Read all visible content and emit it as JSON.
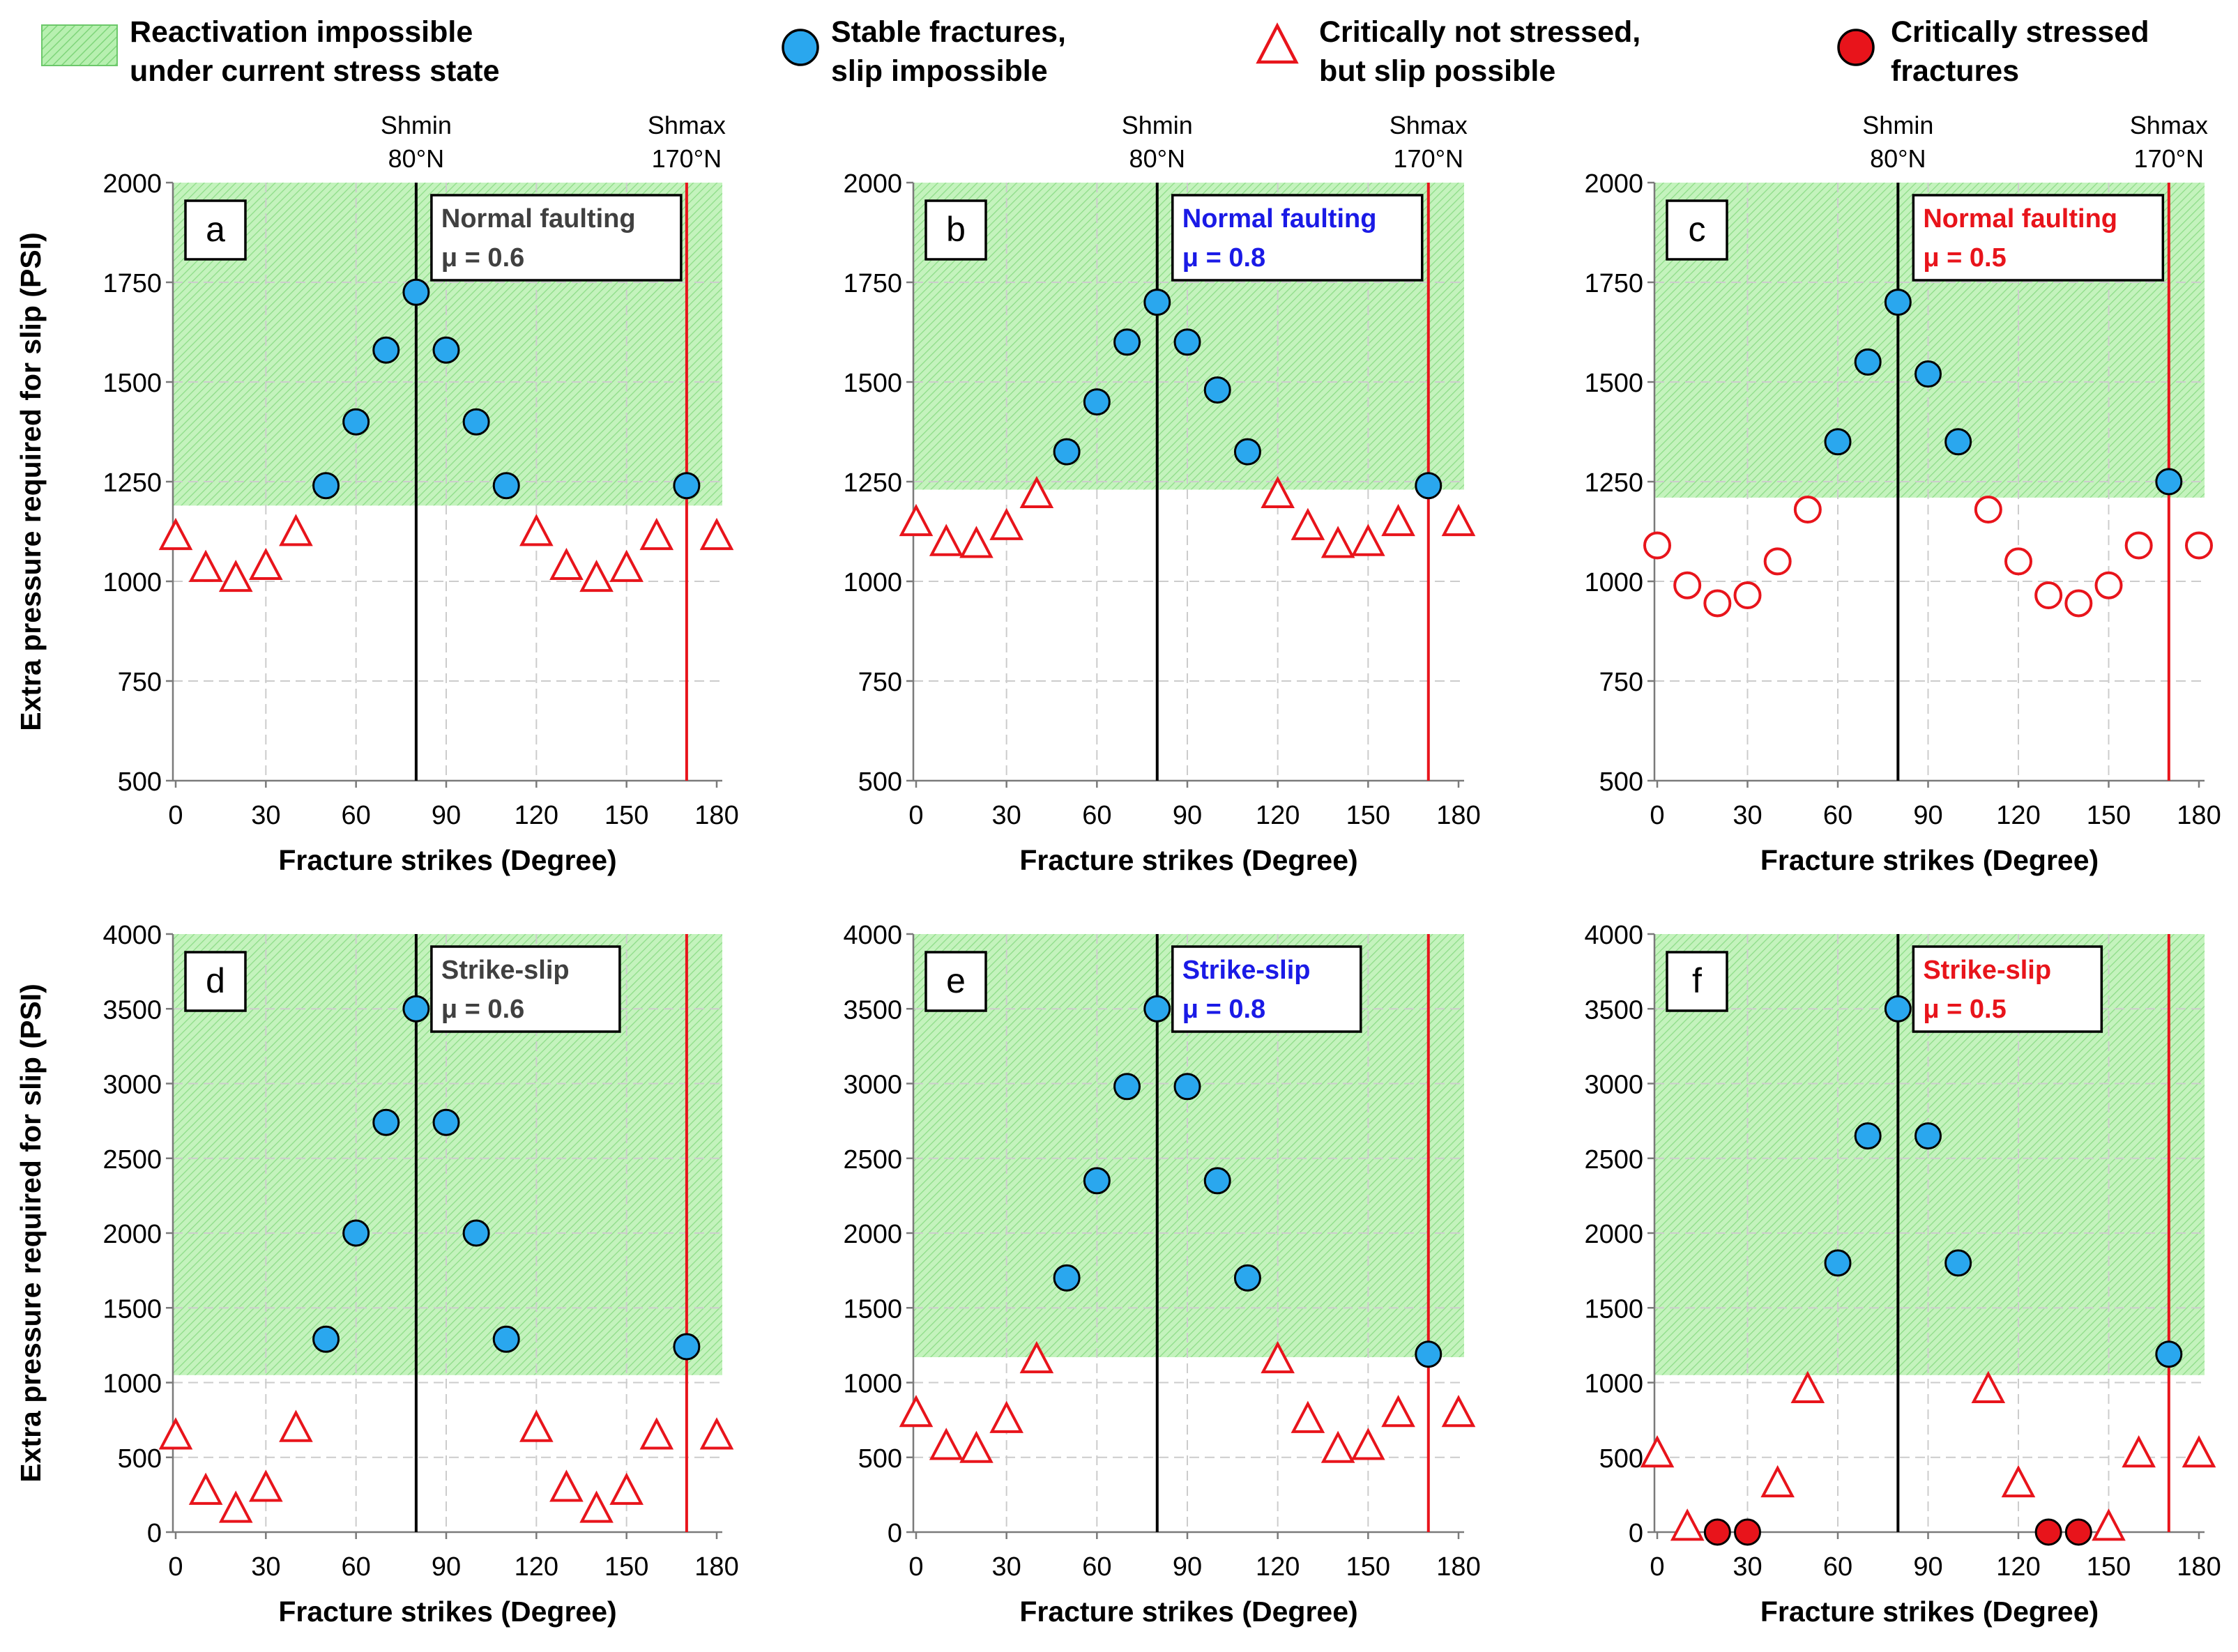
{
  "colors": {
    "zone_fill": "#b7f0b0",
    "zone_hatch": "#7fd57a",
    "stable": "#2aa7ee",
    "critical_not_stressed": "#e8141b",
    "critical_stressed": "#e8141b",
    "shmin_line": "#000000",
    "shmax_line": "#e8141b",
    "grid": "#cccccc",
    "label_gray": "#404040",
    "label_blue": "#1a1ae6",
    "label_red": "#e8141b"
  },
  "legend": [
    {
      "key": "zone",
      "line1": "Reactivation impossible",
      "line2": "under current stress state",
      "symbol": "hatched-box"
    },
    {
      "key": "stable",
      "line1": "Stable fractures,",
      "line2": "slip impossible",
      "symbol": "blue-circle"
    },
    {
      "key": "critical_not_stressed",
      "line1": "Critically  not stressed,",
      "line2": "but slip possible",
      "symbol": "red-triangle"
    },
    {
      "key": "critical_stressed",
      "line1": "Critically  stressed",
      "line2": "fractures",
      "symbol": "red-filled-circle"
    }
  ],
  "common": {
    "xlabel": "Fracture strikes (Degree)",
    "ylabel": "Extra pressure required for slip (PSI)",
    "xticks": [
      0,
      30,
      60,
      90,
      120,
      150,
      180
    ],
    "xlim": [
      0,
      180
    ],
    "shmin": {
      "value": 80,
      "label_top": "Shmin",
      "label_bottom": "80°N"
    },
    "shmax": {
      "value": 170,
      "label_top": "Shmax",
      "label_bottom": "170°N"
    }
  },
  "chart_data": [
    {
      "type": "scatter",
      "panel": "a",
      "regime": "Normal faulting",
      "mu_label": "μ = 0.6",
      "label_color": "label_gray",
      "ylim": [
        500,
        2000
      ],
      "yticks": [
        500,
        750,
        1000,
        1250,
        1500,
        1750,
        2000
      ],
      "zone_min": 1190,
      "stable": {
        "x": [
          50,
          60,
          70,
          80,
          90,
          100,
          110,
          170
        ],
        "y": [
          1240,
          1400,
          1580,
          1725,
          1580,
          1400,
          1240,
          1240
        ]
      },
      "critical_not_stressed": {
        "marker": "triangle",
        "x": [
          0,
          10,
          20,
          30,
          40,
          120,
          130,
          140,
          150,
          160,
          180
        ],
        "y": [
          1115,
          1035,
          1010,
          1040,
          1125,
          1125,
          1040,
          1010,
          1035,
          1115,
          1115
        ]
      },
      "critical_stressed": {
        "x": [],
        "y": []
      }
    },
    {
      "type": "scatter",
      "panel": "b",
      "regime": "Normal faulting",
      "mu_label": "μ = 0.8",
      "label_color": "label_blue",
      "ylim": [
        500,
        2000
      ],
      "yticks": [
        500,
        750,
        1000,
        1250,
        1500,
        1750,
        2000
      ],
      "zone_min": 1230,
      "stable": {
        "x": [
          50,
          60,
          70,
          80,
          90,
          100,
          110,
          170
        ],
        "y": [
          1325,
          1450,
          1600,
          1700,
          1600,
          1480,
          1325,
          1240
        ]
      },
      "critical_not_stressed": {
        "marker": "triangle",
        "x": [
          0,
          10,
          20,
          30,
          40,
          120,
          130,
          140,
          150,
          160,
          180
        ],
        "y": [
          1150,
          1100,
          1095,
          1140,
          1220,
          1220,
          1140,
          1095,
          1100,
          1150,
          1150
        ]
      },
      "critical_stressed": {
        "x": [],
        "y": []
      }
    },
    {
      "type": "scatter",
      "panel": "c",
      "regime": "Normal faulting",
      "mu_label": "μ = 0.5",
      "label_color": "label_red",
      "ylim": [
        500,
        2000
      ],
      "yticks": [
        500,
        750,
        1000,
        1250,
        1500,
        1750,
        2000
      ],
      "zone_min": 1210,
      "stable": {
        "x": [
          60,
          70,
          80,
          90,
          100,
          170
        ],
        "y": [
          1350,
          1550,
          1700,
          1520,
          1350,
          1250
        ]
      },
      "critical_not_stressed": {
        "marker": "circle",
        "x": [
          0,
          10,
          20,
          30,
          40,
          50,
          110,
          120,
          130,
          140,
          150,
          160,
          180
        ],
        "y": [
          1090,
          990,
          945,
          965,
          1050,
          1180,
          1180,
          1050,
          965,
          945,
          990,
          1090,
          1090
        ]
      },
      "critical_stressed": {
        "x": [],
        "y": []
      }
    },
    {
      "type": "scatter",
      "panel": "d",
      "regime": "Strike-slip",
      "mu_label": "μ = 0.6",
      "label_color": "label_gray",
      "ylim": [
        0,
        4000
      ],
      "yticks": [
        0,
        500,
        1000,
        1500,
        2000,
        2500,
        3000,
        3500,
        4000
      ],
      "zone_min": 1050,
      "stable": {
        "x": [
          50,
          60,
          70,
          80,
          90,
          100,
          110,
          170
        ],
        "y": [
          1290,
          2000,
          2740,
          3500,
          2740,
          2000,
          1290,
          1240
        ]
      },
      "critical_not_stressed": {
        "marker": "triangle",
        "x": [
          0,
          10,
          20,
          30,
          40,
          120,
          130,
          140,
          150,
          160,
          180
        ],
        "y": [
          650,
          280,
          160,
          300,
          700,
          700,
          300,
          160,
          280,
          650,
          650
        ]
      },
      "critical_stressed": {
        "x": [],
        "y": []
      }
    },
    {
      "type": "scatter",
      "panel": "e",
      "regime": "Strike-slip",
      "mu_label": "μ = 0.8",
      "label_color": "label_blue",
      "ylim": [
        0,
        4000
      ],
      "yticks": [
        0,
        500,
        1000,
        1500,
        2000,
        2500,
        3000,
        3500,
        4000
      ],
      "zone_min": 1170,
      "stable": {
        "x": [
          50,
          60,
          70,
          80,
          90,
          100,
          110,
          170
        ],
        "y": [
          1700,
          2350,
          2980,
          3500,
          2980,
          2350,
          1700,
          1190
        ]
      },
      "critical_not_stressed": {
        "marker": "triangle",
        "x": [
          0,
          10,
          20,
          30,
          40,
          120,
          130,
          140,
          150,
          160,
          180
        ],
        "y": [
          800,
          580,
          560,
          760,
          1160,
          1160,
          760,
          560,
          580,
          800,
          800
        ]
      },
      "critical_stressed": {
        "x": [],
        "y": []
      }
    },
    {
      "type": "scatter",
      "panel": "f",
      "regime": "Strike-slip",
      "mu_label": "μ = 0.5",
      "label_color": "label_red",
      "ylim": [
        0,
        4000
      ],
      "yticks": [
        0,
        500,
        1000,
        1500,
        2000,
        2500,
        3000,
        3500,
        4000
      ],
      "zone_min": 1050,
      "stable": {
        "x": [
          60,
          70,
          80,
          90,
          100,
          170
        ],
        "y": [
          1800,
          2650,
          3500,
          2650,
          1800,
          1190
        ]
      },
      "critical_not_stressed": {
        "marker": "triangle",
        "x": [
          0,
          10,
          40,
          50,
          110,
          120,
          150,
          160,
          180
        ],
        "y": [
          530,
          40,
          330,
          960,
          960,
          330,
          40,
          530,
          530
        ]
      },
      "critical_stressed": {
        "x": [
          20,
          30,
          130,
          140
        ],
        "y": [
          0,
          0,
          0,
          0
        ]
      }
    }
  ]
}
